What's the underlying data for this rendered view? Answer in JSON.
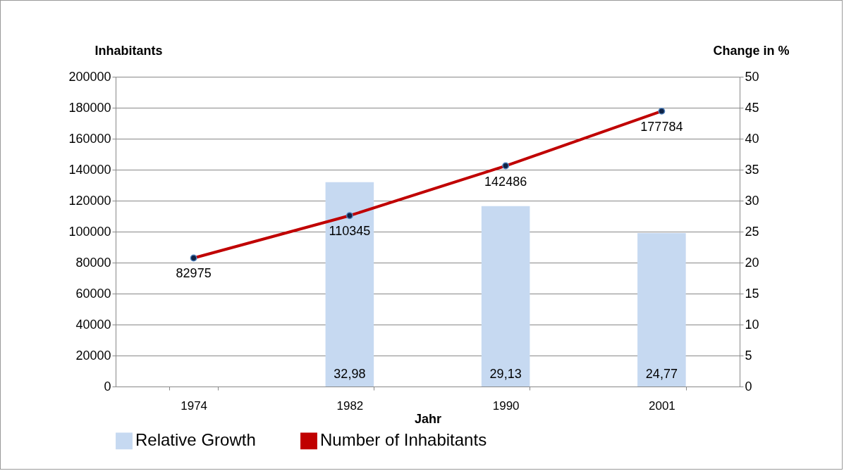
{
  "chart_data": {
    "type": "bar",
    "xlabel": "Jahr",
    "ylabel": "Inhabitants",
    "y2label": "Change in %",
    "categories": [
      "1974",
      "1982",
      "1990",
      "2001"
    ],
    "series": [
      {
        "name": "Relative Growth",
        "axis": "y2",
        "color": "#c6d9f1",
        "values": [
          null,
          32.98,
          29.13,
          24.77
        ],
        "value_labels": [
          null,
          "32,98",
          "29,13",
          "24,77"
        ]
      },
      {
        "name": "Number of Inhabitants",
        "type": "line",
        "color": "#c00000",
        "marker": "circle",
        "values": [
          82975,
          110345,
          142486,
          177784
        ],
        "value_labels": [
          "82975",
          "110345",
          "142486",
          "177784"
        ]
      }
    ],
    "ylim": [
      0,
      200000
    ],
    "yticks": [
      0,
      20000,
      40000,
      60000,
      80000,
      100000,
      120000,
      140000,
      160000,
      180000,
      200000
    ],
    "y2lim": [
      0,
      50
    ],
    "y2ticks": [
      0,
      5,
      10,
      15,
      20,
      25,
      30,
      35,
      40,
      45,
      50
    ],
    "grid": "y",
    "legend": "bottom"
  }
}
